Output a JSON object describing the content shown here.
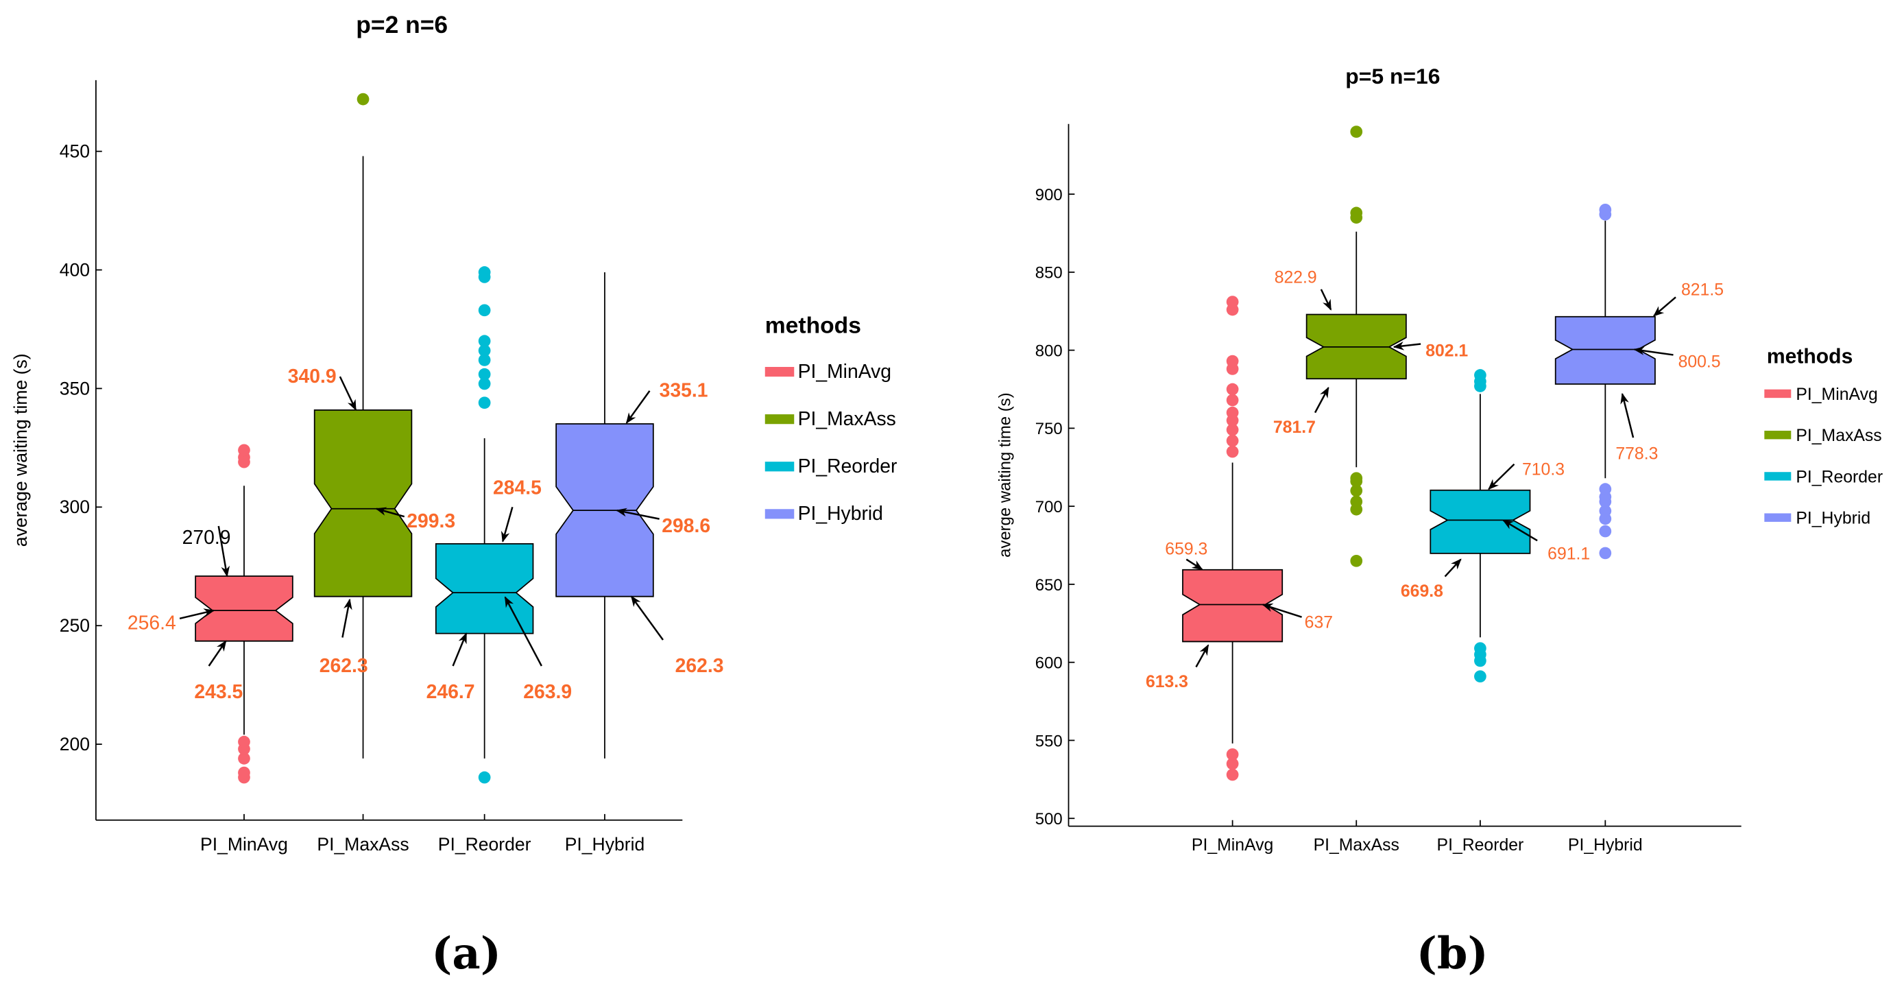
{
  "colors": {
    "PI_MinAvg": "#f8636f",
    "PI_MaxAss": "#7aa300",
    "PI_Reorder": "#00bcd4",
    "PI_Hybrid": "#8491fb",
    "annotation_orange": "#f96a2c",
    "axis": "#000000"
  },
  "chart_data": [
    {
      "type": "boxplot",
      "panel_label": "(a)",
      "title": "p=2   n=6",
      "xlabel": "",
      "ylabel": "average waiting time (s)",
      "categories": [
        "PI_MinAvg",
        "PI_MaxAss",
        "PI_Reorder",
        "PI_Hybrid"
      ],
      "ylim": [
        168,
        480
      ],
      "yticks": [
        200,
        250,
        300,
        350,
        400,
        450
      ],
      "notched": true,
      "legend": {
        "title": "methods",
        "position": "right",
        "entries": [
          "PI_MinAvg",
          "PI_MaxAss",
          "PI_Reorder",
          "PI_Hybrid"
        ]
      },
      "boxes": [
        {
          "name": "PI_MinAvg",
          "q1": 243.5,
          "median": 256.4,
          "q3": 270.9,
          "whisker_low": 204,
          "whisker_high": 309,
          "notch": 5.5,
          "outliers": [
            186,
            188,
            194,
            198,
            201,
            319,
            321,
            324
          ]
        },
        {
          "name": "PI_MaxAss",
          "q1": 262.3,
          "median": 299.3,
          "q3": 340.9,
          "whisker_low": 194,
          "whisker_high": 448,
          "notch": 10.5,
          "outliers": [
            472
          ]
        },
        {
          "name": "PI_Reorder",
          "q1": 246.7,
          "median": 263.9,
          "q3": 284.5,
          "whisker_low": 194,
          "whisker_high": 329,
          "notch": 6,
          "outliers": [
            186,
            344,
            352,
            356,
            362,
            366,
            370,
            383,
            397,
            399
          ]
        },
        {
          "name": "PI_Hybrid",
          "q1": 262.3,
          "median": 298.6,
          "q3": 335.1,
          "whisker_low": 194,
          "whisker_high": 399,
          "notch": 10,
          "outliers": []
        }
      ],
      "annotations": [
        {
          "text": "270.9",
          "color": "black",
          "bold": false,
          "pos": [
            170,
            287
          ],
          "anchor": "middle",
          "arrow": [
            [
              180,
              292
            ],
            [
              187,
              270.9
            ]
          ]
        },
        {
          "text": "256.4",
          "color": "orange",
          "bold": false,
          "pos": [
            145,
            251
          ],
          "anchor": "end",
          "arrow": [
            [
              148,
              253
            ],
            [
              176,
              256.4
            ]
          ]
        },
        {
          "text": "243.5",
          "color": "orange",
          "bold": true,
          "pos": [
            180,
            222
          ],
          "anchor": "middle",
          "arrow": [
            [
              172,
              233
            ],
            [
              186,
              243.5
            ]
          ]
        },
        {
          "text": "340.9",
          "color": "orange",
          "bold": true,
          "pos": [
            257,
            355
          ],
          "anchor": "middle",
          "arrow": [
            [
              280,
              355
            ],
            [
              293,
              341
            ]
          ]
        },
        {
          "text": "299.3",
          "color": "orange",
          "bold": true,
          "pos": [
            335,
            294
          ],
          "anchor": "start",
          "arrow": [
            [
              333,
              296
            ],
            [
              310,
              299.3
            ]
          ]
        },
        {
          "text": "262.3",
          "color": "orange",
          "bold": true,
          "pos": [
            283,
            233
          ],
          "anchor": "middle",
          "arrow": [
            [
              282,
              245
            ],
            [
              288,
              261
            ]
          ]
        },
        {
          "text": "284.5",
          "color": "orange",
          "bold": true,
          "pos": [
            426,
            308
          ],
          "anchor": "middle",
          "arrow": [
            [
              422,
              300
            ],
            [
              414,
              285.5
            ]
          ]
        },
        {
          "text": "246.7",
          "color": "orange",
          "bold": true,
          "pos": [
            371,
            222
          ],
          "anchor": "middle",
          "arrow": [
            [
              373,
              233
            ],
            [
              384,
              246.7
            ]
          ]
        },
        {
          "text": "263.9",
          "color": "orange",
          "bold": true,
          "pos": [
            451,
            222
          ],
          "anchor": "middle",
          "arrow": [
            [
              446,
              233
            ],
            [
              416,
              262
            ]
          ]
        },
        {
          "text": "335.1",
          "color": "orange",
          "bold": true,
          "pos": [
            563,
            349
          ],
          "anchor": "middle",
          "arrow": [
            [
              535,
              349
            ],
            [
              516,
              335.5
            ]
          ]
        },
        {
          "text": "298.6",
          "color": "orange",
          "bold": true,
          "pos": [
            545,
            292
          ],
          "anchor": "start",
          "arrow": [
            [
              543,
              295
            ],
            [
              508,
              298.6
            ]
          ]
        },
        {
          "text": "262.3",
          "color": "orange",
          "bold": true,
          "pos": [
            576,
            233
          ],
          "anchor": "middle",
          "arrow": [
            [
              546,
              244
            ],
            [
              520,
              262.3
            ]
          ]
        }
      ]
    },
    {
      "type": "boxplot",
      "panel_label": "(b)",
      "title": "p=5   n=16",
      "xlabel": "",
      "ylabel": "averge waiting time (s)",
      "categories": [
        "PI_MinAvg",
        "PI_MaxAss",
        "PI_Reorder",
        "PI_Hybrid"
      ],
      "ylim": [
        495,
        945
      ],
      "yticks": [
        500,
        550,
        600,
        650,
        700,
        750,
        800,
        850,
        900
      ],
      "notched": true,
      "legend": {
        "title": "methods",
        "position": "right",
        "entries": [
          "PI_MinAvg",
          "PI_MaxAss",
          "PI_Reorder",
          "PI_Hybrid"
        ]
      },
      "boxes": [
        {
          "name": "PI_MinAvg",
          "q1": 613.3,
          "median": 637,
          "q3": 659.3,
          "whisker_low": 548,
          "whisker_high": 728,
          "notch": 6.5,
          "outliers": [
            528,
            535,
            541,
            735,
            742,
            749,
            755,
            760,
            768,
            775,
            788,
            793,
            826,
            831
          ]
        },
        {
          "name": "PI_MaxAss",
          "q1": 781.7,
          "median": 802.1,
          "q3": 822.9,
          "whisker_low": 725,
          "whisker_high": 876,
          "notch": 6,
          "outliers": [
            665,
            698,
            703,
            710,
            716,
            718,
            885,
            888,
            940
          ]
        },
        {
          "name": "PI_Reorder",
          "q1": 669.8,
          "median": 691.1,
          "q3": 710.3,
          "whisker_low": 616,
          "whisker_high": 772,
          "notch": 6,
          "outliers": [
            591,
            601,
            605,
            609,
            777,
            780,
            784
          ]
        },
        {
          "name": "PI_Hybrid",
          "q1": 778.3,
          "median": 800.5,
          "q3": 821.5,
          "whisker_low": 718,
          "whisker_high": 883,
          "notch": 6,
          "outliers": [
            670,
            684,
            692,
            697,
            703,
            706,
            711,
            887,
            890
          ]
        }
      ],
      "annotations": [
        {
          "text": "659.3",
          "color": "orange",
          "bold": false,
          "pos": [
            977,
            673
          ],
          "anchor": "middle",
          "arrow": [
            [
              977,
              666
            ],
            [
              990,
              659.5
            ]
          ]
        },
        {
          "text": "637",
          "color": "orange",
          "bold": false,
          "pos": [
            1086,
            626
          ],
          "anchor": "middle",
          "arrow": [
            [
              1072,
              629
            ],
            [
              1040,
              637
            ]
          ]
        },
        {
          "text": "613.3",
          "color": "orange",
          "bold": true,
          "pos": [
            961,
            588
          ],
          "anchor": "middle",
          "arrow": [
            [
              985,
              597
            ],
            [
              995,
              611
            ]
          ]
        },
        {
          "text": "822.9",
          "color": "orange",
          "bold": false,
          "pos": [
            1067,
            847
          ],
          "anchor": "middle",
          "arrow": [
            [
              1088,
              839
            ],
            [
              1096,
              826
            ]
          ]
        },
        {
          "text": "802.1",
          "color": "orange",
          "bold": true,
          "pos": [
            1174,
            800
          ],
          "anchor": "start",
          "arrow": [
            [
              1170,
              804
            ],
            [
              1148,
              802.1
            ]
          ]
        },
        {
          "text": "781.7",
          "color": "orange",
          "bold": true,
          "pos": [
            1066,
            751
          ],
          "anchor": "middle",
          "arrow": [
            [
              1083,
              760
            ],
            [
              1094,
              776
            ]
          ]
        },
        {
          "text": "710.3",
          "color": "orange",
          "bold": false,
          "pos": [
            1271,
            724
          ],
          "anchor": "middle",
          "arrow": [
            [
              1247,
              727
            ],
            [
              1226,
              711
            ]
          ]
        },
        {
          "text": "691.1",
          "color": "orange",
          "bold": false,
          "pos": [
            1292,
            670
          ],
          "anchor": "middle",
          "arrow": [
            [
              1266,
              678
            ],
            [
              1238,
              691
            ]
          ]
        },
        {
          "text": "669.8",
          "color": "orange",
          "bold": true,
          "pos": [
            1171,
            646
          ],
          "anchor": "middle",
          "arrow": [
            [
              1190,
              655
            ],
            [
              1203,
              666
            ]
          ]
        },
        {
          "text": "821.5",
          "color": "orange",
          "bold": false,
          "pos": [
            1402,
            839
          ],
          "anchor": "middle",
          "arrow": [
            [
              1380,
              834
            ],
            [
              1362,
              822
            ]
          ]
        },
        {
          "text": "800.5",
          "color": "orange",
          "bold": false,
          "pos": [
            1382,
            793
          ],
          "anchor": "start",
          "arrow": [
            [
              1378,
              797
            ],
            [
              1346,
              800.5
            ]
          ]
        },
        {
          "text": "778.3",
          "color": "orange",
          "bold": false,
          "pos": [
            1348,
            734
          ],
          "anchor": "middle",
          "arrow": [
            [
              1345,
              744
            ],
            [
              1336,
              772
            ]
          ]
        }
      ]
    }
  ]
}
